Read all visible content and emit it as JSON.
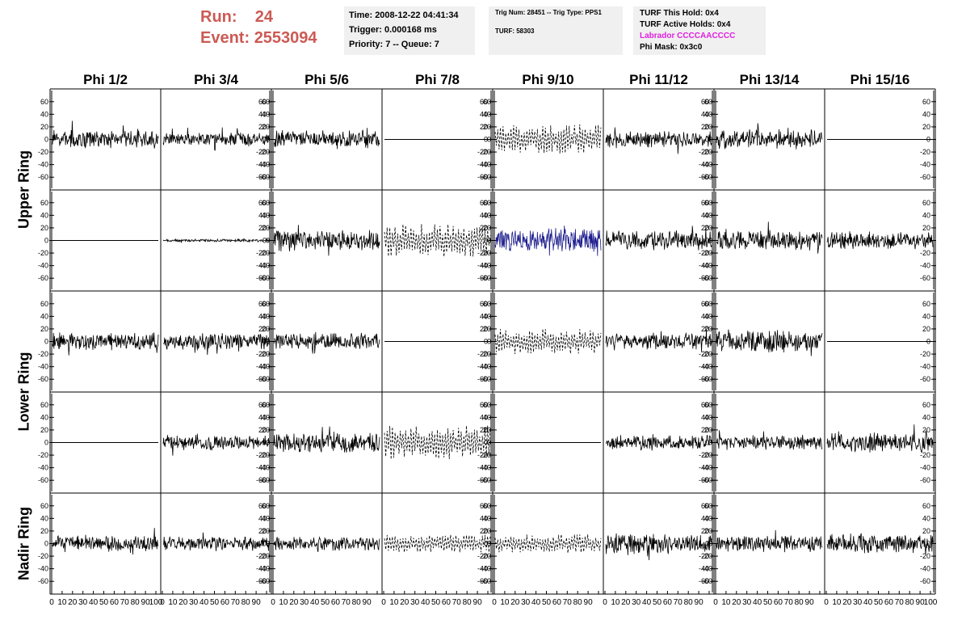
{
  "header": {
    "run_label": "Run:",
    "run_value": "24",
    "event_label": "Event:",
    "event_value": "2553094",
    "time": "Time: 2008-12-22 04:41:34",
    "trigger": "Trigger: 0.000168 ms",
    "priority": "Priority: 7 -- Queue: 7",
    "trig_num": "Trig Num: 28451 -- Trig Type: PPS1",
    "turf": "TURF: 58303",
    "turf_hold": "TURF This Hold: 0x4",
    "turf_active": "TURF Active Holds: 0x4",
    "labrador": "Labrador CCCCAACCCC",
    "phi_mask": "Phi Mask: 0x3c0"
  },
  "colors": {
    "title_red": "#cc5a54",
    "labrador_magenta": "#e020e0",
    "highlight_trace": "#1a1a8c",
    "trace": "#000000"
  },
  "chart_data": {
    "type": "line",
    "columns": [
      "Phi 1/2",
      "Phi 3/4",
      "Phi 5/6",
      "Phi 7/8",
      "Phi 9/10",
      "Phi 11/12",
      "Phi 13/14",
      "Phi 15/16"
    ],
    "row_labels": [
      {
        "text": "Upper Ring",
        "rows": [
          0,
          1
        ]
      },
      {
        "text": "Lower Ring",
        "rows": [
          2,
          3
        ]
      },
      {
        "text": "Nadir Ring",
        "rows": [
          4
        ]
      }
    ],
    "ylim": [
      -70,
      70
    ],
    "yticks": [
      -60,
      -40,
      -20,
      0,
      20,
      40,
      60
    ],
    "xlim": [
      0,
      100
    ],
    "xticks": [
      0,
      10,
      20,
      30,
      40,
      50,
      60,
      70,
      80,
      90,
      100
    ],
    "panels": [
      [
        {
          "style": "solid",
          "amp": 13
        },
        {
          "style": "solid",
          "amp": 10
        },
        {
          "style": "solid",
          "amp": 13
        },
        {
          "style": "flat",
          "amp": 0
        },
        {
          "style": "dashed",
          "amp": 24
        },
        {
          "style": "solid",
          "amp": 12
        },
        {
          "style": "solid",
          "amp": 14
        },
        {
          "style": "flat",
          "amp": 0
        }
      ],
      [
        {
          "style": "flat",
          "amp": 0
        },
        {
          "style": "solid",
          "amp": 2
        },
        {
          "style": "solid",
          "amp": 15
        },
        {
          "style": "dashed",
          "amp": 26
        },
        {
          "style": "solid",
          "amp": 18,
          "highlight": true
        },
        {
          "style": "solid",
          "amp": 14
        },
        {
          "style": "solid",
          "amp": 14
        },
        {
          "style": "solid",
          "amp": 13
        }
      ],
      [
        {
          "style": "solid",
          "amp": 13
        },
        {
          "style": "solid",
          "amp": 12
        },
        {
          "style": "solid",
          "amp": 12
        },
        {
          "style": "flat",
          "amp": 0
        },
        {
          "style": "dashed",
          "amp": 20
        },
        {
          "style": "solid",
          "amp": 12
        },
        {
          "style": "solid",
          "amp": 16
        },
        {
          "style": "flat",
          "amp": 0
        }
      ],
      [
        {
          "style": "flat",
          "amp": 0
        },
        {
          "style": "solid",
          "amp": 11
        },
        {
          "style": "solid",
          "amp": 15
        },
        {
          "style": "dashed",
          "amp": 27
        },
        {
          "style": "flat",
          "amp": 0
        },
        {
          "style": "solid",
          "amp": 11
        },
        {
          "style": "solid",
          "amp": 11
        },
        {
          "style": "solid",
          "amp": 14
        }
      ],
      [
        {
          "style": "solid",
          "amp": 12
        },
        {
          "style": "solid",
          "amp": 10
        },
        {
          "style": "solid",
          "amp": 10
        },
        {
          "style": "dashed",
          "amp": 14
        },
        {
          "style": "dashed",
          "amp": 15
        },
        {
          "style": "solid",
          "amp": 15
        },
        {
          "style": "solid",
          "amp": 12
        },
        {
          "style": "solid",
          "amp": 14
        }
      ]
    ]
  }
}
